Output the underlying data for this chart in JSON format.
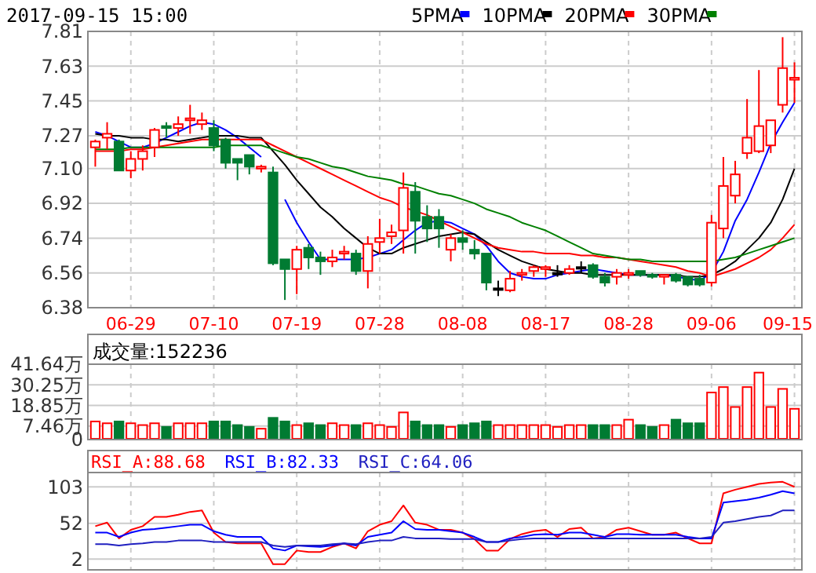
{
  "chart_data": [
    {
      "type": "candlestick",
      "title": "2017-09-15 15:00",
      "legend": "top",
      "grid": true,
      "categories": [
        null,
        null,
        null,
        "06-29",
        null,
        null,
        null,
        null,
        null,
        null,
        "07-10",
        null,
        null,
        null,
        null,
        null,
        null,
        "07-19",
        null,
        null,
        null,
        null,
        null,
        null,
        "07-28",
        null,
        null,
        null,
        null,
        null,
        null,
        "08-08",
        null,
        null,
        null,
        null,
        null,
        null,
        "08-17",
        null,
        null,
        null,
        null,
        null,
        null,
        "08-28",
        null,
        null,
        null,
        null,
        null,
        null,
        "09-06",
        null,
        null,
        null,
        null,
        null,
        null,
        "09-15"
      ],
      "ohlc": [
        [
          7.21,
          7.25,
          7.11,
          7.24
        ],
        [
          7.26,
          7.34,
          7.2,
          7.28
        ],
        [
          7.24,
          7.25,
          7.09,
          7.09
        ],
        [
          7.09,
          7.19,
          7.05,
          7.15
        ],
        [
          7.15,
          7.22,
          7.09,
          7.19
        ],
        [
          7.21,
          7.31,
          7.16,
          7.3
        ],
        [
          7.32,
          7.34,
          7.26,
          7.31
        ],
        [
          7.31,
          7.37,
          7.27,
          7.33
        ],
        [
          7.35,
          7.43,
          7.28,
          7.36
        ],
        [
          7.33,
          7.39,
          7.3,
          7.35
        ],
        [
          7.31,
          7.35,
          7.19,
          7.22
        ],
        [
          7.25,
          7.26,
          7.1,
          7.13
        ],
        [
          7.15,
          7.15,
          7.04,
          7.13
        ],
        [
          7.17,
          7.17,
          7.07,
          7.11
        ],
        [
          7.1,
          7.12,
          7.08,
          7.11
        ],
        [
          7.08,
          7.11,
          6.6,
          6.61
        ],
        [
          6.63,
          6.63,
          6.42,
          6.58
        ],
        [
          6.58,
          6.7,
          6.45,
          6.68
        ],
        [
          6.69,
          6.71,
          6.58,
          6.64
        ],
        [
          6.64,
          6.67,
          6.55,
          6.62
        ],
        [
          6.62,
          6.68,
          6.59,
          6.64
        ],
        [
          6.66,
          6.7,
          6.63,
          6.67
        ],
        [
          6.66,
          6.68,
          6.55,
          6.57
        ],
        [
          6.57,
          6.75,
          6.48,
          6.71
        ],
        [
          6.72,
          6.84,
          6.66,
          6.74
        ],
        [
          6.75,
          6.81,
          6.71,
          6.77
        ],
        [
          6.78,
          7.08,
          6.66,
          7.0
        ],
        [
          6.98,
          7.03,
          6.66,
          6.83
        ],
        [
          6.85,
          6.91,
          6.72,
          6.79
        ],
        [
          6.85,
          6.89,
          6.69,
          6.79
        ],
        [
          6.68,
          6.76,
          6.62,
          6.74
        ],
        [
          6.74,
          6.78,
          6.68,
          6.72
        ],
        [
          6.68,
          6.73,
          6.63,
          6.66
        ],
        [
          6.66,
          6.66,
          6.47,
          6.51
        ],
        [
          6.48,
          6.52,
          6.44,
          6.48
        ],
        [
          6.47,
          6.57,
          6.46,
          6.53
        ],
        [
          6.55,
          6.58,
          6.52,
          6.56
        ],
        [
          6.57,
          6.6,
          6.54,
          6.59
        ],
        [
          6.58,
          6.6,
          6.54,
          6.59
        ],
        [
          6.56,
          6.6,
          6.54,
          6.56
        ],
        [
          6.56,
          6.6,
          6.55,
          6.58
        ],
        [
          6.59,
          6.62,
          6.56,
          6.59
        ],
        [
          6.6,
          6.61,
          6.53,
          6.54
        ],
        [
          6.54,
          6.56,
          6.49,
          6.51
        ],
        [
          6.54,
          6.58,
          6.5,
          6.56
        ],
        [
          6.55,
          6.58,
          6.53,
          6.56
        ],
        [
          6.57,
          6.57,
          6.54,
          6.55
        ],
        [
          6.55,
          6.56,
          6.53,
          6.54
        ],
        [
          6.54,
          6.55,
          6.5,
          6.55
        ],
        [
          6.55,
          6.56,
          6.51,
          6.52
        ],
        [
          6.54,
          6.54,
          6.49,
          6.5
        ],
        [
          6.53,
          6.55,
          6.49,
          6.5
        ],
        [
          6.51,
          6.86,
          6.49,
          6.82
        ],
        [
          6.79,
          7.16,
          6.74,
          7.01
        ],
        [
          6.96,
          7.14,
          6.92,
          7.07
        ],
        [
          7.18,
          7.46,
          7.15,
          7.26
        ],
        [
          7.19,
          7.61,
          7.18,
          7.32
        ],
        [
          7.22,
          7.35,
          7.18,
          7.35
        ],
        [
          7.43,
          7.78,
          7.39,
          7.62
        ],
        [
          7.56,
          7.65,
          7.44,
          7.57
        ]
      ],
      "colors": [
        "#ff0000",
        "#ff0000",
        "#007b32",
        "#ff0000",
        "#ff0000",
        "#ff0000",
        "#007b32",
        "#ff0000",
        "#ff0000",
        "#ff0000",
        "#007b32",
        "#007b32",
        "#007b32",
        "#007b32",
        "#ff0000",
        "#007b32",
        "#007b32",
        "#ff0000",
        "#007b32",
        "#007b32",
        "#ff0000",
        "#ff0000",
        "#007b32",
        "#ff0000",
        "#ff0000",
        "#ff0000",
        "#ff0000",
        "#007b32",
        "#007b32",
        "#007b32",
        "#ff0000",
        "#007b32",
        "#007b32",
        "#007b32",
        "#000000",
        "#ff0000",
        "#ff0000",
        "#ff0000",
        "#ff0000",
        "#000000",
        "#ff0000",
        "#000000",
        "#007b32",
        "#007b32",
        "#ff0000",
        "#ff0000",
        "#007b32",
        "#007b32",
        "#ff0000",
        "#007b32",
        "#007b32",
        "#007b32",
        "#ff0000",
        "#ff0000",
        "#ff0000",
        "#ff0000",
        "#ff0000",
        "#ff0000",
        "#ff0000",
        "#ff0000"
      ],
      "series": [
        {
          "name": "5PMA",
          "type": "line",
          "color": "#0000ff",
          "values": [
            7.29,
            7.27,
            7.24,
            7.21,
            7.21,
            7.23,
            7.26,
            7.29,
            7.32,
            7.34,
            7.33,
            7.3,
            7.26,
            7.21,
            7.16,
            null,
            6.94,
            6.82,
            6.72,
            6.63,
            6.63,
            6.63,
            6.63,
            6.64,
            6.66,
            6.68,
            6.73,
            6.78,
            6.82,
            6.83,
            6.82,
            6.79,
            6.76,
            6.7,
            6.62,
            6.56,
            6.54,
            6.53,
            6.53,
            6.55,
            6.56,
            6.57,
            6.58,
            6.57,
            6.56,
            6.55,
            6.55,
            6.55,
            6.55,
            6.54,
            6.53,
            6.52,
            6.56,
            6.67,
            6.83,
            6.94,
            7.08,
            7.23,
            7.34,
            7.44
          ]
        },
        {
          "name": "10PMA",
          "type": "line",
          "color": "#000000",
          "values": [
            7.28,
            7.27,
            7.27,
            7.26,
            7.26,
            7.25,
            7.25,
            7.24,
            7.25,
            7.26,
            7.27,
            7.27,
            7.27,
            7.26,
            7.26,
            7.19,
            7.12,
            7.04,
            6.97,
            6.9,
            6.85,
            6.79,
            6.74,
            6.69,
            6.66,
            6.66,
            6.69,
            6.71,
            6.73,
            6.75,
            6.76,
            6.77,
            6.76,
            6.72,
            6.68,
            6.65,
            6.62,
            6.6,
            6.58,
            6.57,
            6.56,
            6.56,
            6.55,
            6.55,
            6.55,
            6.55,
            6.55,
            6.55,
            6.55,
            6.55,
            6.54,
            6.54,
            6.55,
            6.58,
            6.62,
            6.68,
            6.74,
            6.82,
            6.94,
            7.1
          ]
        },
        {
          "name": "20PMA",
          "type": "line",
          "color": "#ff0000",
          "values": [
            7.19,
            7.19,
            7.19,
            7.2,
            7.2,
            7.21,
            7.22,
            7.23,
            7.24,
            7.25,
            7.25,
            7.25,
            7.25,
            7.25,
            7.25,
            7.22,
            7.19,
            7.16,
            7.13,
            7.1,
            7.07,
            7.04,
            7.01,
            6.98,
            6.95,
            6.93,
            6.9,
            6.88,
            6.86,
            6.83,
            6.8,
            6.77,
            6.74,
            6.71,
            6.69,
            6.68,
            6.67,
            6.67,
            6.66,
            6.66,
            6.66,
            6.65,
            6.65,
            6.64,
            6.64,
            6.63,
            6.62,
            6.61,
            6.6,
            6.59,
            6.57,
            6.56,
            6.54,
            6.56,
            6.58,
            6.61,
            6.64,
            6.68,
            6.74,
            6.81
          ]
        },
        {
          "name": "30PMA",
          "type": "line",
          "color": "#008000",
          "values": [
            7.2,
            7.2,
            7.2,
            7.21,
            7.21,
            7.21,
            7.21,
            7.21,
            7.21,
            7.21,
            7.21,
            7.22,
            7.22,
            7.22,
            7.22,
            7.2,
            7.18,
            7.16,
            7.15,
            7.13,
            7.11,
            7.1,
            7.08,
            7.06,
            7.05,
            7.04,
            7.02,
            7.01,
            6.99,
            6.97,
            6.96,
            6.94,
            6.92,
            6.89,
            6.87,
            6.85,
            6.82,
            6.8,
            6.78,
            6.75,
            6.72,
            6.69,
            6.66,
            6.65,
            6.64,
            6.63,
            6.63,
            6.62,
            6.62,
            6.62,
            6.62,
            6.62,
            6.62,
            6.63,
            6.64,
            6.66,
            6.68,
            6.7,
            6.72,
            6.74
          ]
        }
      ],
      "ylim": [
        6.38,
        7.81
      ],
      "yticks": [
        6.38,
        6.56,
        6.74,
        6.92,
        {
          "value": 7.1,
          "label": "7.10"
        },
        7.27,
        7.45,
        7.63,
        7.81
      ]
    },
    {
      "type": "bar",
      "title": "成交量:152236",
      "grid": true,
      "tick_labels": "y",
      "categories": [
        null,
        null,
        null,
        null,
        null,
        null,
        null,
        null,
        null,
        null,
        null,
        null,
        null,
        null,
        null,
        null,
        null,
        null,
        null,
        null,
        null,
        null,
        null,
        null,
        null,
        null,
        null,
        null,
        null,
        null,
        null,
        null,
        null,
        null,
        null,
        null,
        null,
        null,
        null,
        null,
        null,
        null,
        null,
        null,
        null,
        null,
        null,
        null,
        null,
        null,
        null,
        null,
        null,
        null,
        null,
        null,
        null,
        null,
        null,
        null
      ],
      "values": [
        10,
        9,
        10,
        9,
        8,
        9,
        7,
        9,
        9,
        9,
        10,
        10,
        8,
        7,
        6,
        12,
        10,
        8,
        9,
        8,
        9,
        8,
        8,
        9,
        8,
        7,
        15,
        10,
        8,
        8,
        7,
        8,
        9,
        10,
        8,
        8,
        8,
        8,
        8,
        7,
        8,
        8,
        8,
        8,
        8,
        11,
        8,
        7,
        8,
        11,
        9,
        9,
        26,
        29,
        18,
        29,
        37,
        18,
        28,
        17
      ],
      "colors": [
        "#ff0000",
        "#ff0000",
        "#007b32",
        "#ff0000",
        "#ff0000",
        "#ff0000",
        "#007b32",
        "#ff0000",
        "#ff0000",
        "#ff0000",
        "#007b32",
        "#007b32",
        "#007b32",
        "#007b32",
        "#ff0000",
        "#007b32",
        "#007b32",
        "#ff0000",
        "#007b32",
        "#007b32",
        "#ff0000",
        "#ff0000",
        "#007b32",
        "#ff0000",
        "#ff0000",
        "#ff0000",
        "#ff0000",
        "#007b32",
        "#007b32",
        "#007b32",
        "#ff0000",
        "#007b32",
        "#007b32",
        "#007b32",
        "#ff0000",
        "#ff0000",
        "#ff0000",
        "#ff0000",
        "#ff0000",
        "#ff0000",
        "#ff0000",
        "#ff0000",
        "#007b32",
        "#007b32",
        "#ff0000",
        "#ff0000",
        "#007b32",
        "#007b32",
        "#ff0000",
        "#007b32",
        "#007b32",
        "#007b32",
        "#ff0000",
        "#ff0000",
        "#ff0000",
        "#ff0000",
        "#ff0000",
        "#ff0000",
        "#ff0000",
        "#ff0000"
      ],
      "ylim": [
        0,
        41.64
      ],
      "yticks": [
        0,
        {
          "value": 7.46,
          "label": "7.46万"
        },
        {
          "value": 18.85,
          "label": "18.85万"
        },
        {
          "value": 30.25,
          "label": "30.25万"
        },
        {
          "value": 41.64,
          "label": "41.64万"
        }
      ]
    },
    {
      "type": "line",
      "grid": true,
      "tick_labels": "y",
      "legend": "top left",
      "categories": [
        null,
        null,
        null,
        null,
        null,
        null,
        null,
        null,
        null,
        null,
        null,
        null,
        null,
        null,
        null,
        null,
        null,
        null,
        null,
        null,
        null,
        null,
        null,
        null,
        null,
        null,
        null,
        null,
        null,
        null,
        null,
        null,
        null,
        null,
        null,
        null,
        null,
        null,
        null,
        null,
        null,
        null,
        null,
        null,
        null,
        null,
        null,
        null,
        null,
        null,
        null,
        null,
        null,
        null,
        null,
        null,
        null,
        null,
        null,
        null
      ],
      "series": [
        {
          "name": "RSI_A:88.68",
          "color": "#ff0000",
          "values": [
            48,
            53,
            31,
            43,
            48,
            61,
            61,
            64,
            68,
            70,
            39,
            26,
            24,
            24,
            24,
            -5,
            -5,
            14,
            12,
            12,
            19,
            24,
            17,
            41,
            50,
            55,
            77,
            53,
            50,
            43,
            43,
            39,
            30,
            14,
            14,
            30,
            37,
            41,
            43,
            33,
            44,
            46,
            31,
            33,
            43,
            46,
            41,
            36,
            36,
            39,
            31,
            24,
            24,
            94,
            99,
            103,
            107,
            109,
            110,
            103
          ]
        },
        {
          "name": "RSI_B:82.33",
          "color": "#0000ff",
          "values": [
            39,
            39,
            33,
            39,
            43,
            44,
            46,
            48,
            50,
            50,
            41,
            36,
            33,
            33,
            33,
            17,
            14,
            21,
            20,
            19,
            21,
            24,
            21,
            33,
            36,
            39,
            55,
            44,
            43,
            43,
            41,
            39,
            33,
            26,
            26,
            31,
            33,
            36,
            37,
            36,
            39,
            39,
            36,
            33,
            37,
            37,
            36,
            36,
            36,
            36,
            33,
            31,
            31,
            81,
            83,
            85,
            88,
            92,
            97,
            94
          ]
        },
        {
          "name": "RSI_C:64.06",
          "color": "#2020c0",
          "values": [
            23,
            23,
            21,
            23,
            24,
            26,
            26,
            28,
            28,
            28,
            26,
            26,
            26,
            26,
            26,
            21,
            19,
            21,
            21,
            21,
            23,
            24,
            23,
            26,
            28,
            28,
            33,
            31,
            31,
            31,
            30,
            30,
            30,
            26,
            26,
            28,
            30,
            31,
            31,
            31,
            31,
            31,
            31,
            31,
            31,
            31,
            31,
            31,
            31,
            31,
            31,
            31,
            33,
            53,
            55,
            58,
            61,
            63,
            70,
            70
          ]
        }
      ],
      "ylim": [
        -13,
        123
      ],
      "yticks": [
        2,
        52,
        103
      ]
    }
  ]
}
